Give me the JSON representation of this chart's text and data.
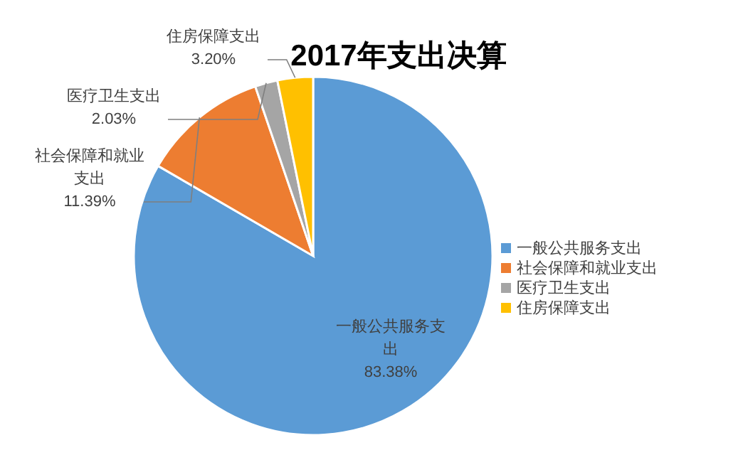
{
  "chart_data": {
    "type": "pie",
    "title": "2017年支出决算",
    "categories": [
      "一般公共服务支出",
      "社会保障和就业支出",
      "医疗卫生支出",
      "住房保障支出"
    ],
    "values": [
      83.38,
      11.39,
      2.03,
      3.2
    ],
    "value_labels": [
      "83.38%",
      "11.39%",
      "2.03%",
      "3.20%"
    ],
    "colors": [
      "#5b9bd5",
      "#ed7d31",
      "#a5a5a5",
      "#ffc000"
    ],
    "legend": "right"
  }
}
